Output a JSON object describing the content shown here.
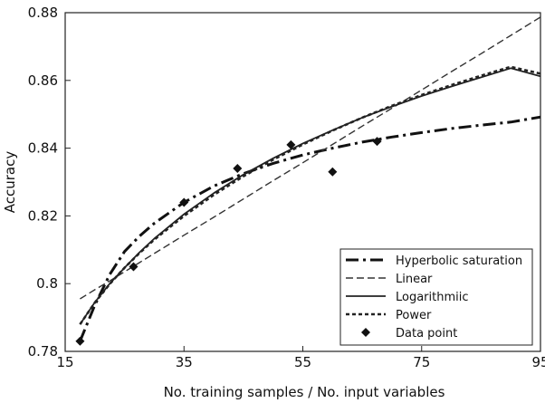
{
  "chart_data": {
    "type": "line",
    "title": "",
    "xlabel": "No. training samples / No. input variables",
    "ylabel": "Accuracy",
    "xlim": [
      15,
      95
    ],
    "ylim": [
      0.78,
      0.88
    ],
    "x_ticks": [
      15,
      35,
      55,
      75,
      95
    ],
    "x_tick_labels": [
      "15",
      "35",
      "55",
      "75",
      "95"
    ],
    "y_ticks": [
      0.78,
      0.8,
      0.82,
      0.84,
      0.86,
      0.88
    ],
    "y_tick_labels": [
      "0.78",
      "0.8",
      "0.82",
      "0.84",
      "0.86",
      "0.88"
    ],
    "grid": false,
    "legend_position": "bottom-right",
    "x": [
      17.5,
      20,
      22.5,
      25,
      27.5,
      30,
      35,
      40,
      45,
      50,
      55,
      60,
      65,
      70,
      75,
      80,
      85,
      90,
      95
    ],
    "series": [
      {
        "name": "Hyperbolic saturation",
        "style": "dash-dot",
        "color": "#111111",
        "values": [
          0.783,
          0.7937,
          0.8027,
          0.8095,
          0.814,
          0.8178,
          0.824,
          0.8288,
          0.8325,
          0.8355,
          0.838,
          0.84,
          0.8418,
          0.8433,
          0.8446,
          0.8458,
          0.8468,
          0.8477,
          0.8492
        ]
      },
      {
        "name": "Linear",
        "style": "dashed",
        "color": "#333333",
        "values": [
          0.7955,
          0.7982,
          0.8008,
          0.8035,
          0.8062,
          0.8089,
          0.8143,
          0.8196,
          0.825,
          0.8304,
          0.8357,
          0.8411,
          0.8465,
          0.8518,
          0.8572,
          0.8626,
          0.8679,
          0.8733,
          0.8787
        ]
      },
      {
        "name": "Logarithmiic",
        "style": "solid",
        "color": "#222222",
        "values": [
          0.788,
          0.7945,
          0.8,
          0.8047,
          0.8092,
          0.8133,
          0.8205,
          0.8267,
          0.8322,
          0.837,
          0.8414,
          0.8453,
          0.849,
          0.8523,
          0.8554,
          0.8582,
          0.8609,
          0.8636,
          0.8612
        ]
      },
      {
        "name": "Power",
        "style": "dotted",
        "color": "#222222",
        "values": [
          0.788,
          0.7944,
          0.7999,
          0.8047,
          0.809,
          0.813,
          0.82,
          0.8262,
          0.8317,
          0.8366,
          0.8411,
          0.8452,
          0.849,
          0.8525,
          0.8557,
          0.8586,
          0.8614,
          0.864,
          0.862
        ]
      }
    ],
    "points": {
      "name": "Data point",
      "x": [
        17.5,
        26.5,
        35,
        44,
        53,
        60,
        67.5
      ],
      "y": [
        0.783,
        0.805,
        0.824,
        0.834,
        0.841,
        0.833,
        0.842
      ]
    }
  }
}
